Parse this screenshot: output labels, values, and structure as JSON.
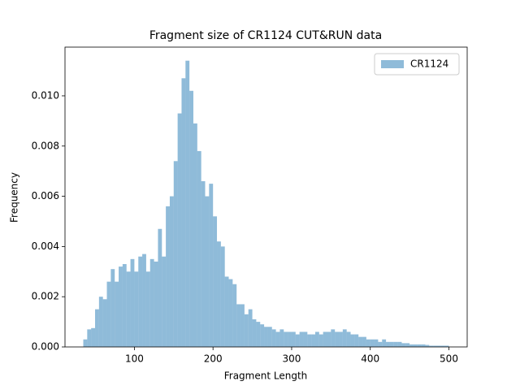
{
  "chart_data": {
    "type": "histogram",
    "title": "Fragment size of CR1124 CUT&RUN data",
    "x_label": "Fragment Length",
    "y_label": "Frequency",
    "bins": [
      35,
      40,
      45,
      50,
      55,
      60,
      65,
      70,
      75,
      80,
      85,
      90,
      95,
      100,
      105,
      110,
      115,
      120,
      125,
      130,
      135,
      140,
      145,
      150,
      155,
      160,
      165,
      170,
      175,
      180,
      185,
      190,
      195,
      200,
      205,
      210,
      215,
      220,
      225,
      230,
      235,
      240,
      245,
      250,
      255,
      260,
      265,
      270,
      275,
      280,
      285,
      290,
      295,
      300,
      305,
      310,
      315,
      320,
      325,
      330,
      335,
      340,
      345,
      350,
      355,
      360,
      365,
      370,
      375,
      380,
      385,
      390,
      395,
      400,
      405,
      410,
      415,
      420,
      425,
      430,
      435,
      440,
      445,
      450,
      455,
      460,
      465,
      470,
      475,
      480,
      485,
      490,
      495,
      500
    ],
    "series": [
      {
        "name": "CR1124",
        "color": "#1f77b4",
        "alpha": 0.5,
        "values": [
          0.0003,
          0.0007,
          0.00075,
          0.0015,
          0.002,
          0.0019,
          0.0026,
          0.0031,
          0.0026,
          0.0032,
          0.0033,
          0.003,
          0.0035,
          0.003,
          0.0036,
          0.0037,
          0.003,
          0.0035,
          0.0034,
          0.0047,
          0.0036,
          0.0056,
          0.006,
          0.0074,
          0.0093,
          0.0107,
          0.0114,
          0.0102,
          0.0089,
          0.0078,
          0.0066,
          0.006,
          0.0065,
          0.0052,
          0.0042,
          0.004,
          0.0028,
          0.0027,
          0.0025,
          0.0017,
          0.0017,
          0.0013,
          0.0015,
          0.0011,
          0.001,
          0.0009,
          0.0008,
          0.0008,
          0.0007,
          0.0006,
          0.0007,
          0.0006,
          0.0006,
          0.0006,
          0.0005,
          0.0006,
          0.0006,
          0.0005,
          0.0005,
          0.0006,
          0.0005,
          0.0006,
          0.0006,
          0.0007,
          0.0006,
          0.0006,
          0.0007,
          0.0006,
          0.0005,
          0.0005,
          0.0004,
          0.0004,
          0.0003,
          0.0003,
          0.0003,
          0.0002,
          0.0003,
          0.0002,
          0.0002,
          0.0002,
          0.0002,
          0.00015,
          0.00015,
          0.0001,
          0.0001,
          0.0001,
          0.0001,
          8e-05,
          5e-05,
          5e-05,
          5e-05,
          5e-05,
          5e-05
        ]
      }
    ],
    "xlim": [
      11.75,
      523.25
    ],
    "xticks": [
      100,
      200,
      300,
      400,
      500
    ],
    "ylim": [
      0,
      0.01194
    ],
    "yticks": [
      {
        "value": 0,
        "label": "0.000"
      },
      {
        "value": 0.002,
        "label": "0.002"
      },
      {
        "value": 0.004,
        "label": "0.004"
      },
      {
        "value": 0.006,
        "label": "0.006"
      },
      {
        "value": 0.008,
        "label": "0.008"
      },
      {
        "value": 0.01,
        "label": "0.010"
      }
    ],
    "legend": "upper right"
  }
}
